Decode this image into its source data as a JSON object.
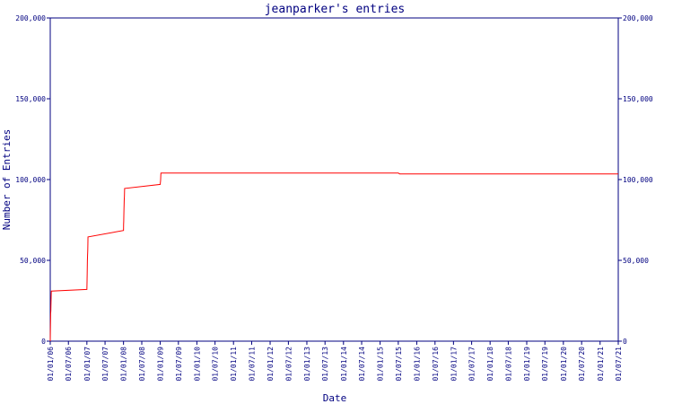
{
  "colors": {
    "axis": "#000080",
    "text": "#000080",
    "series": "#ff0000",
    "background": "#ffffff"
  },
  "chart_data": {
    "type": "line",
    "title": "jeanparker's entries",
    "xlabel": "Date",
    "ylabel": "Number of Entries",
    "ylim": [
      0,
      200000
    ],
    "y_ticks": [
      0,
      50000,
      100000,
      150000,
      200000
    ],
    "y_tick_labels": [
      "0",
      "50,000",
      "100,000",
      "150,000",
      "200,000"
    ],
    "x_tick_labels": [
      "01/01/06",
      "01/07/06",
      "01/01/07",
      "01/07/07",
      "01/01/08",
      "01/07/08",
      "01/01/09",
      "01/07/09",
      "01/01/10",
      "01/07/10",
      "01/01/11",
      "01/07/11",
      "01/01/12",
      "01/07/12",
      "01/01/13",
      "01/07/13",
      "01/01/14",
      "01/07/14",
      "01/01/15",
      "01/07/15",
      "01/01/16",
      "01/07/16",
      "01/01/17",
      "01/07/17",
      "01/01/18",
      "01/07/18",
      "01/01/19",
      "01/07/19",
      "01/01/20",
      "01/07/20",
      "01/01/21",
      "01/07/21"
    ],
    "grid": false,
    "series": [
      {
        "x": [
          "01/01/06",
          "02/01/06",
          "03/01/06",
          "04/01/06",
          "05/01/06",
          "06/01/06",
          "07/01/06",
          "08/01/06",
          "09/01/06",
          "10/01/06",
          "11/01/06",
          "12/01/06",
          "01/01/07",
          "02/01/07",
          "03/01/07",
          "04/01/07",
          "05/01/07",
          "06/01/07",
          "07/01/07",
          "08/01/07",
          "09/01/07",
          "10/01/07",
          "11/01/07",
          "12/01/07",
          "01/01/08",
          "02/01/08",
          "03/01/08",
          "04/01/08",
          "05/01/08",
          "06/01/08",
          "07/01/08",
          "08/01/08",
          "09/01/08",
          "10/01/08",
          "11/01/08",
          "12/01/08",
          "01/01/09",
          "02/01/09",
          "03/01/09",
          "04/01/09",
          "05/01/09",
          "06/01/09",
          "07/01/09",
          "08/01/09",
          "01/01/10",
          "01/01/12",
          "01/01/14",
          "01/07/15",
          "15/07/15",
          "01/01/18",
          "01/07/21"
        ],
        "values": [
          0,
          5000,
          9000,
          13000,
          17000,
          18000,
          19000,
          22000,
          24500,
          27000,
          29500,
          31000,
          32000,
          35000,
          38000,
          41500,
          45500,
          49500,
          51500,
          53500,
          55000,
          57000,
          60500,
          64500,
          68500,
          72500,
          74000,
          77000,
          80000,
          82500,
          84500,
          87000,
          88500,
          89500,
          92000,
          94500,
          97000,
          98000,
          98500,
          99000,
          100000,
          101500,
          103000,
          104000,
          104000,
          104000,
          104000,
          104000,
          103500,
          103500,
          103500
        ]
      }
    ]
  }
}
